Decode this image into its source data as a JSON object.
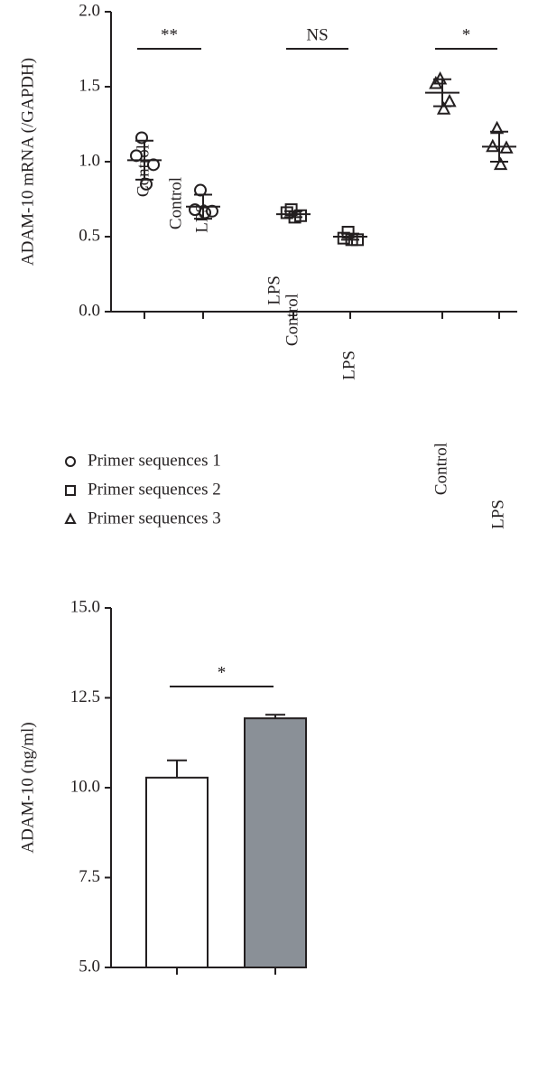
{
  "chart_data": [
    {
      "type": "dot",
      "y_label": "ADAM-10 mRNA (/GAPDH)",
      "categories": [
        "Control",
        "LPS",
        "Control",
        "LPS",
        "Control",
        "LPS"
      ],
      "ylim": [
        0,
        2
      ],
      "yticks": [
        {
          "value": 0,
          "label": "0.0"
        },
        0.5,
        {
          "value": 1,
          "label": "1.0"
        },
        1.5,
        {
          "value": 2,
          "label": "2.0"
        }
      ],
      "series": [
        {
          "name": "Primer sequences 1",
          "marker": "circle",
          "color": "#231f20",
          "values": [
            [
              1.16,
              1.04,
              0.98,
              0.85
            ],
            [
              0.81,
              0.68,
              0.67,
              0.66
            ],
            null,
            null,
            null,
            null
          ],
          "mean": [
            1.01,
            0.7,
            null,
            null,
            null,
            null
          ],
          "sd": [
            0.13,
            0.08,
            null,
            null,
            null,
            null
          ]
        },
        {
          "name": "Primer sequences 2",
          "marker": "square",
          "color": "#231f20",
          "values": [
            null,
            null,
            [
              0.68,
              0.66,
              0.64,
              0.63
            ],
            [
              0.53,
              0.49,
              0.48,
              0.48
            ],
            null,
            null
          ],
          "mean": [
            null,
            null,
            0.65,
            0.5,
            null,
            null
          ],
          "sd": [
            null,
            null,
            0.02,
            0.02,
            null,
            null
          ]
        },
        {
          "name": "Primer sequences 3",
          "marker": "triangle",
          "color": "#231f20",
          "values": [
            null,
            null,
            null,
            null,
            [
              1.55,
              1.52,
              1.4,
              1.35
            ],
            [
              1.22,
              1.1,
              1.09,
              0.98
            ]
          ],
          "mean": [
            null,
            null,
            null,
            null,
            1.46,
            1.1
          ],
          "sd": [
            null,
            null,
            null,
            null,
            0.09,
            0.1
          ]
        }
      ],
      "annotations": [
        {
          "text": "**",
          "between": [
            0,
            1
          ]
        },
        {
          "text": "NS",
          "between": [
            2,
            3
          ]
        },
        {
          "text": "*",
          "between": [
            4,
            5
          ]
        }
      ]
    },
    {
      "type": "bar",
      "y_label": "ADAM-10 (ng/ml)",
      "categories": [
        "Control",
        "LPS"
      ],
      "values": [
        10.28,
        11.93
      ],
      "errors": [
        0.48,
        0.1
      ],
      "colors": [
        "#ffffff",
        "#8a9097"
      ],
      "ylim": [
        5,
        15
      ],
      "yticks": [
        {
          "value": 5,
          "label": "5.0"
        },
        7.5,
        {
          "value": 10,
          "label": "10.0"
        },
        12.5,
        {
          "value": 15,
          "label": "15.0"
        }
      ],
      "annotations": [
        {
          "text": "*",
          "between": [
            0,
            1
          ]
        }
      ]
    }
  ]
}
